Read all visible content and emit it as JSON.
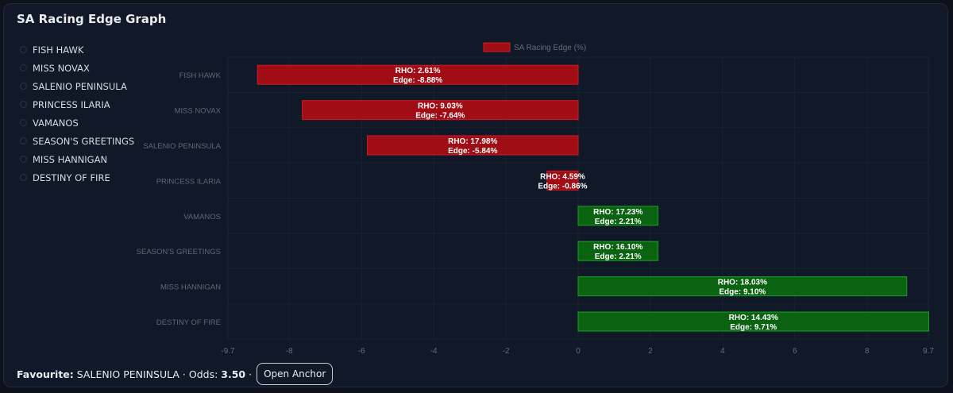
{
  "title": "SA Racing Edge Graph",
  "runners": [
    {
      "name": "FISH HAWK"
    },
    {
      "name": "MISS NOVAX"
    },
    {
      "name": "SALENIO PENINSULA"
    },
    {
      "name": "PRINCESS ILARIA"
    },
    {
      "name": "VAMANOS"
    },
    {
      "name": "SEASON'S GREETINGS"
    },
    {
      "name": "MISS HANNIGAN"
    },
    {
      "name": "DESTINY OF FIRE"
    }
  ],
  "footer": {
    "favourite_label": "Favourite:",
    "favourite_name": "SALENIO PENINSULA",
    "odds_label": "Odds:",
    "odds_value": "3.50",
    "separator": "·",
    "open_anchor_label": "Open Anchor"
  },
  "colors": {
    "negative_fill": "#a10d14",
    "negative_stroke": "#d11a22",
    "positive_fill": "#0b6312",
    "positive_stroke": "#18a024",
    "legend_swatch": "#a10d14"
  },
  "chart_data": {
    "type": "bar",
    "orientation": "horizontal",
    "legend": {
      "label": "SA Racing Edge (%)",
      "position": "top"
    },
    "categories": [
      "FISH HAWK",
      "MISS NOVAX",
      "SALENIO PENINSULA",
      "PRINCESS ILARIA",
      "VAMANOS",
      "SEASON'S GREETINGS",
      "MISS HANNIGAN",
      "DESTINY OF FIRE"
    ],
    "series": [
      {
        "name": "SA Racing Edge (%)",
        "values": [
          -8.88,
          -7.64,
          -5.84,
          -0.86,
          2.21,
          2.21,
          9.1,
          9.71
        ]
      }
    ],
    "data_labels": [
      [
        "RHO: 2.61%",
        "Edge: -8.88%"
      ],
      [
        "RHO: 9.03%",
        "Edge: -7.64%"
      ],
      [
        "RHO: 17.98%",
        "Edge: -5.84%"
      ],
      [
        "RHO: 4.59%",
        "Edge: -0.86%"
      ],
      [
        "RHO: 17.23%",
        "Edge: 2.21%"
      ],
      [
        "RHO: 16.10%",
        "Edge: 2.21%"
      ],
      [
        "RHO: 18.03%",
        "Edge: 9.10%"
      ],
      [
        "RHO: 14.43%",
        "Edge: 9.71%"
      ]
    ],
    "xlim": [
      -9.7,
      9.7
    ],
    "x_ticks": [
      -9.7,
      -8,
      -6,
      -4,
      -2,
      0,
      2,
      4,
      6,
      8,
      9.7
    ],
    "x_tick_labels": [
      "-9.7",
      "-8",
      "-6",
      "-4",
      "-2",
      "0",
      "2",
      "4",
      "6",
      "8",
      "9.7"
    ],
    "grid": true
  }
}
